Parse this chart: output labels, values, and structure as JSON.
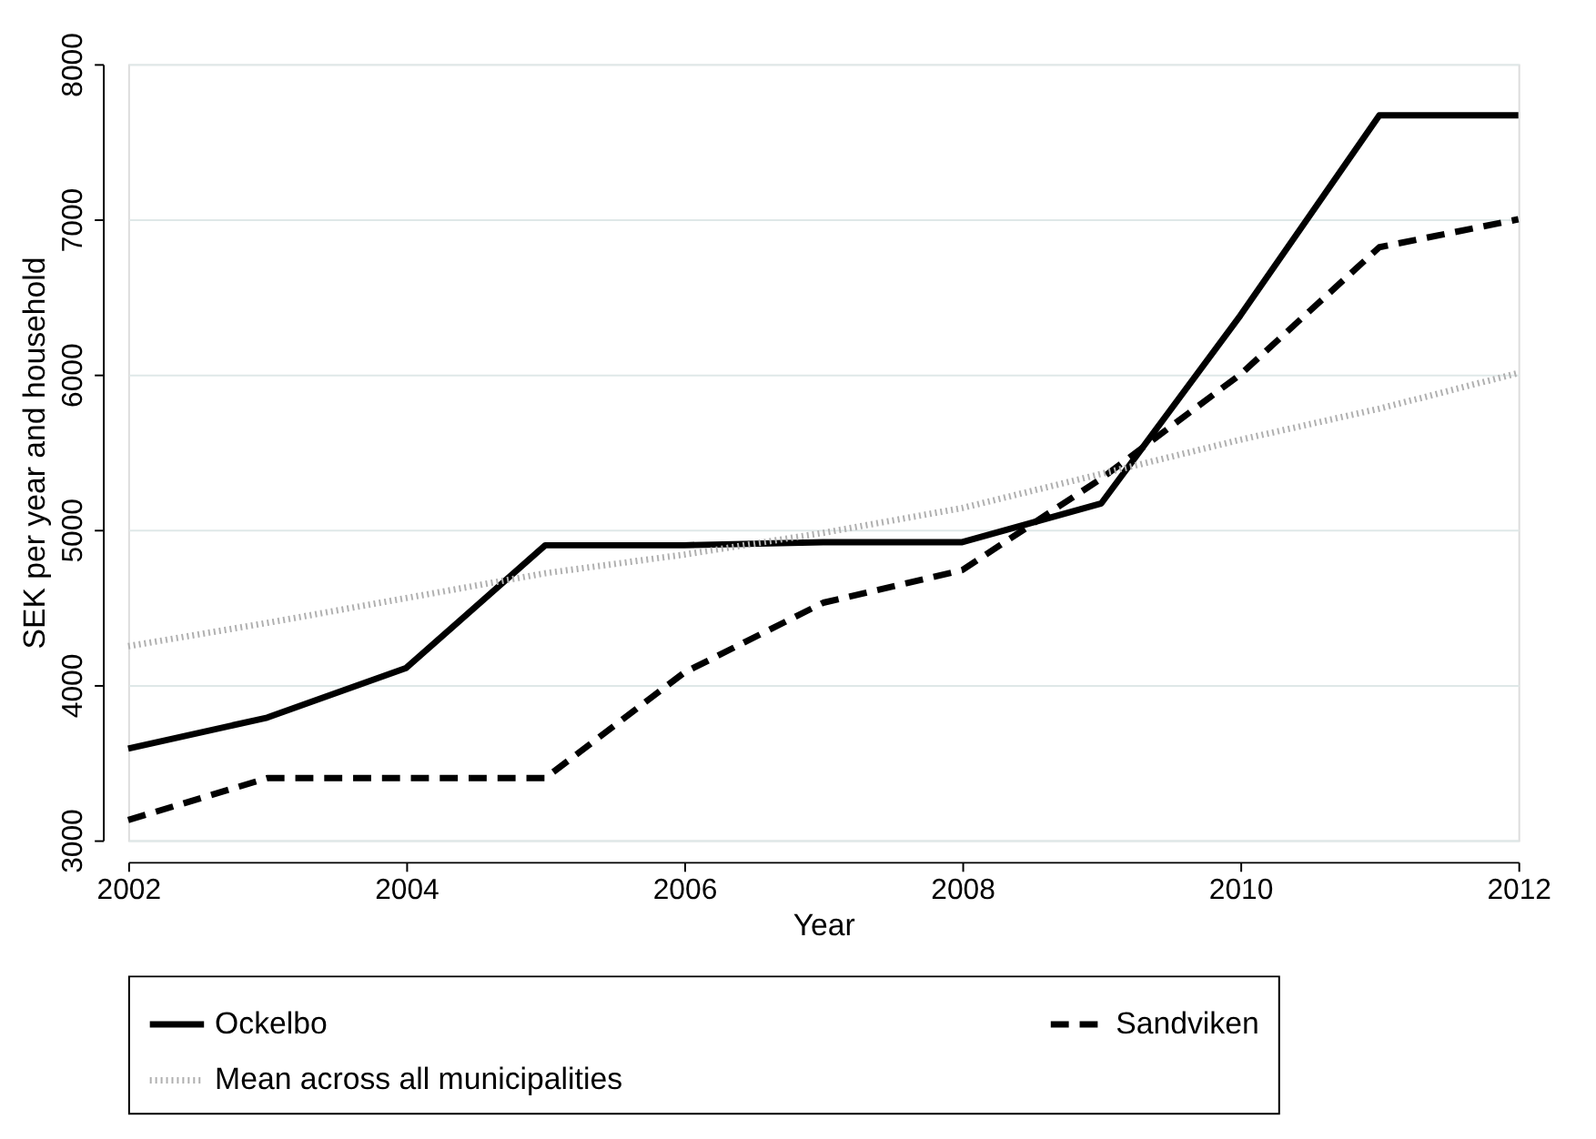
{
  "chart_data": {
    "type": "line",
    "xlabel": "Year",
    "ylabel": "SEK per year and household",
    "x": [
      2002,
      2003,
      2004,
      2005,
      2006,
      2007,
      2008,
      2009,
      2010,
      2011,
      2012
    ],
    "series": [
      {
        "name": "Ockelbo",
        "color": "#000000",
        "line_style": "solid",
        "values": [
          3590,
          3790,
          4110,
          4900,
          4900,
          4920,
          4920,
          5170,
          6380,
          7670,
          7670
        ]
      },
      {
        "name": "Sandviken",
        "color": "#000000",
        "line_style": "dashed",
        "values": [
          3130,
          3400,
          3400,
          3400,
          4080,
          4530,
          4740,
          5330,
          6000,
          6820,
          7000
        ]
      },
      {
        "name": "Mean across all municipalities",
        "color": "#b0b0b0",
        "line_style": "dotted",
        "values": [
          4250,
          4400,
          4560,
          4720,
          4840,
          4980,
          5140,
          5360,
          5580,
          5780,
          6010
        ]
      }
    ],
    "xlim": [
      2002,
      2012
    ],
    "xticks": [
      2002,
      2004,
      2006,
      2008,
      2010,
      2012
    ],
    "ylim": [
      3000,
      8000
    ],
    "yticks": [
      3000,
      4000,
      5000,
      6000,
      7000,
      8000
    ],
    "grid": "y",
    "legend": "bottom",
    "marker": "none"
  }
}
